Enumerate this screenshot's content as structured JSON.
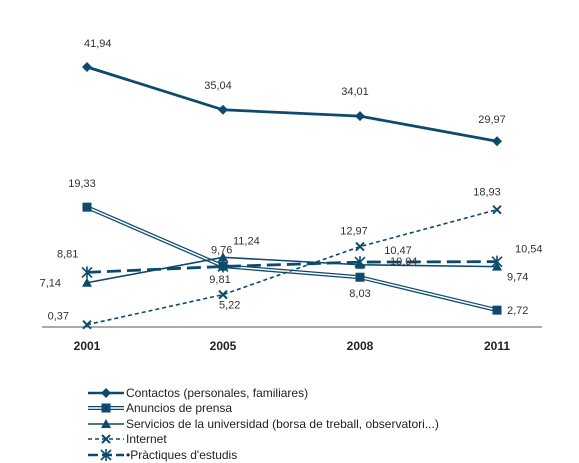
{
  "chart_data": {
    "type": "line",
    "categories": [
      "2001",
      "2005",
      "2008",
      "2011"
    ],
    "ylim": [
      0,
      45
    ],
    "grid": false,
    "legend_position": "bottom",
    "series": [
      {
        "name": "Contactos (personales, familiares)",
        "values": [
          41.94,
          35.04,
          34.01,
          29.97
        ],
        "labels": [
          "41,94",
          "35,04",
          "34,01",
          "29,97"
        ],
        "color": "#0d4a6e",
        "marker": "diamond",
        "line": "solid-thick"
      },
      {
        "name": "Anuncios de prensa",
        "values": [
          19.33,
          9.81,
          8.03,
          2.72
        ],
        "labels": [
          "19,33",
          "9,81",
          "8,03",
          "2,72"
        ],
        "color": "#0d4a6e",
        "marker": "square",
        "line": "double"
      },
      {
        "name": "Servicios de la universidad (borsa de treball, observatori...)",
        "values": [
          7.14,
          11.24,
          10.04,
          9.74
        ],
        "labels": [
          "7,14",
          "11,24",
          "10,04",
          "9,74"
        ],
        "color": "#0d4a6e",
        "marker": "triangle",
        "line": "solid"
      },
      {
        "name": "Internet",
        "values": [
          0.37,
          5.22,
          12.97,
          18.93
        ],
        "labels": [
          "0,37",
          "5,22",
          "12,97",
          "18,93"
        ],
        "color": "#0d4a6e",
        "marker": "x",
        "line": "dashed"
      },
      {
        "name": "•Pràctiques d'estudis",
        "values": [
          8.81,
          9.76,
          10.47,
          10.54
        ],
        "labels": [
          "8,81",
          "9,76",
          "10,47",
          "10,54"
        ],
        "color": "#0d4a6e",
        "marker": "star",
        "line": "longdash"
      }
    ]
  }
}
